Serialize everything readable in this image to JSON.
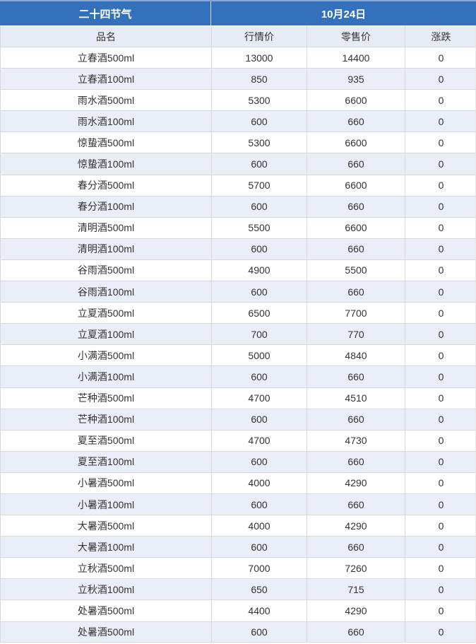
{
  "header": {
    "group_left": "二十四节气",
    "group_right": "10月24日"
  },
  "columns": [
    "品名",
    "行情价",
    "零售价",
    "涨跌"
  ],
  "rows": [
    {
      "name": "立春酒500ml",
      "market_price": "13000",
      "retail_price": "14400",
      "change": "0"
    },
    {
      "name": "立春酒100ml",
      "market_price": "850",
      "retail_price": "935",
      "change": "0"
    },
    {
      "name": "雨水酒500ml",
      "market_price": "5300",
      "retail_price": "6600",
      "change": "0"
    },
    {
      "name": "雨水酒100ml",
      "market_price": "600",
      "retail_price": "660",
      "change": "0"
    },
    {
      "name": "惊蛰酒500ml",
      "market_price": "5300",
      "retail_price": "6600",
      "change": "0"
    },
    {
      "name": "惊蛰酒100ml",
      "market_price": "600",
      "retail_price": "660",
      "change": "0"
    },
    {
      "name": "春分酒500ml",
      "market_price": "5700",
      "retail_price": "6600",
      "change": "0"
    },
    {
      "name": "春分酒100ml",
      "market_price": "600",
      "retail_price": "660",
      "change": "0"
    },
    {
      "name": "清明酒500ml",
      "market_price": "5500",
      "retail_price": "6600",
      "change": "0"
    },
    {
      "name": "清明酒100ml",
      "market_price": "600",
      "retail_price": "660",
      "change": "0"
    },
    {
      "name": "谷雨酒500ml",
      "market_price": "4900",
      "retail_price": "5500",
      "change": "0"
    },
    {
      "name": "谷雨酒100ml",
      "market_price": "600",
      "retail_price": "660",
      "change": "0"
    },
    {
      "name": "立夏酒500ml",
      "market_price": "6500",
      "retail_price": "7700",
      "change": "0"
    },
    {
      "name": "立夏酒100ml",
      "market_price": "700",
      "retail_price": "770",
      "change": "0"
    },
    {
      "name": "小满酒500ml",
      "market_price": "5000",
      "retail_price": "4840",
      "change": "0"
    },
    {
      "name": "小满酒100ml",
      "market_price": "600",
      "retail_price": "660",
      "change": "0"
    },
    {
      "name": "芒种酒500ml",
      "market_price": "4700",
      "retail_price": "4510",
      "change": "0"
    },
    {
      "name": "芒种酒100ml",
      "market_price": "600",
      "retail_price": "660",
      "change": "0"
    },
    {
      "name": "夏至酒500ml",
      "market_price": "4700",
      "retail_price": "4730",
      "change": "0"
    },
    {
      "name": "夏至酒100ml",
      "market_price": "600",
      "retail_price": "660",
      "change": "0"
    },
    {
      "name": "小暑酒500ml",
      "market_price": "4000",
      "retail_price": "4290",
      "change": "0"
    },
    {
      "name": "小暑酒100ml",
      "market_price": "600",
      "retail_price": "660",
      "change": "0"
    },
    {
      "name": "大暑酒500ml",
      "market_price": "4000",
      "retail_price": "4290",
      "change": "0"
    },
    {
      "name": "大暑酒100ml",
      "market_price": "600",
      "retail_price": "660",
      "change": "0"
    },
    {
      "name": "立秋酒500ml",
      "market_price": "7000",
      "retail_price": "7260",
      "change": "0"
    },
    {
      "name": "立秋酒100ml",
      "market_price": "650",
      "retail_price": "715",
      "change": "0"
    },
    {
      "name": "处暑酒500ml",
      "market_price": "4400",
      "retail_price": "4290",
      "change": "0"
    },
    {
      "name": "处暑酒500ml",
      "market_price": "600",
      "retail_price": "660",
      "change": "0"
    }
  ],
  "colors": {
    "header_blue": "#3471bd",
    "stripe_blue": "#e9eef8",
    "column_header_bg": "#e6ecf6",
    "border_gray": "#d9d9d9",
    "text": "#333333",
    "header_text": "#ffffff"
  }
}
